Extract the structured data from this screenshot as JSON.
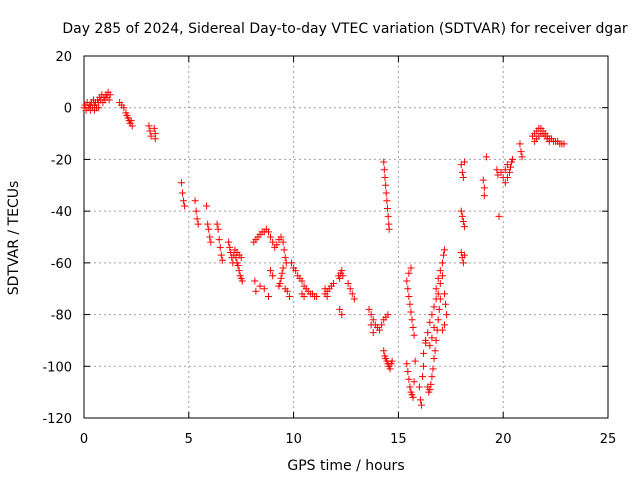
{
  "chart_data": {
    "type": "scatter",
    "title": "Day 285 of 2024, Sidereal Day-to-day VTEC variation (SDTVAR) for receiver dgar",
    "xlabel": "GPS time / hours",
    "ylabel": "SDTVAR / TECUs",
    "xlim": [
      0,
      25
    ],
    "ylim": [
      -120,
      20
    ],
    "xticks": [
      "0",
      "5",
      "10",
      "15",
      "20",
      "25"
    ],
    "yticks": [
      "20",
      "0",
      "-20",
      "-40",
      "-60",
      "-80",
      "-100",
      "-120"
    ],
    "grid": true,
    "marker": "+",
    "marker_color": "#ff0000",
    "series": [
      {
        "name": "SDTVAR",
        "points": [
          [
            0.0,
            0
          ],
          [
            0.05,
            1
          ],
          [
            0.1,
            -1
          ],
          [
            0.15,
            2
          ],
          [
            0.2,
            0
          ],
          [
            0.25,
            1
          ],
          [
            0.3,
            -1
          ],
          [
            0.35,
            2
          ],
          [
            0.4,
            0
          ],
          [
            0.45,
            3
          ],
          [
            0.5,
            1
          ],
          [
            0.55,
            2
          ],
          [
            0.6,
            0
          ],
          [
            0.65,
            3
          ],
          [
            0.7,
            2
          ],
          [
            0.75,
            4
          ],
          [
            0.8,
            3
          ],
          [
            0.85,
            5
          ],
          [
            0.9,
            2
          ],
          [
            0.95,
            4
          ],
          [
            1.0,
            3
          ],
          [
            1.05,
            5
          ],
          [
            1.1,
            4
          ],
          [
            1.15,
            6
          ],
          [
            1.2,
            3
          ],
          [
            1.25,
            5
          ],
          [
            0.3,
            1
          ],
          [
            0.5,
            -1
          ],
          [
            0.7,
            0
          ],
          [
            1.7,
            2
          ],
          [
            1.8,
            1
          ],
          [
            1.9,
            0
          ],
          [
            2.0,
            -2
          ],
          [
            2.05,
            -3
          ],
          [
            2.1,
            -4
          ],
          [
            2.15,
            -5
          ],
          [
            2.2,
            -6
          ],
          [
            2.25,
            -5
          ],
          [
            2.3,
            -7
          ],
          [
            3.1,
            -7
          ],
          [
            3.15,
            -9
          ],
          [
            3.2,
            -11
          ],
          [
            3.35,
            -8
          ],
          [
            3.4,
            -10
          ],
          [
            3.4,
            -12
          ],
          [
            4.65,
            -29
          ],
          [
            4.7,
            -33
          ],
          [
            4.75,
            -36
          ],
          [
            4.8,
            -38
          ],
          [
            5.3,
            -36
          ],
          [
            5.35,
            -40
          ],
          [
            5.4,
            -43
          ],
          [
            5.45,
            -45
          ],
          [
            5.85,
            -38
          ],
          [
            5.9,
            -45
          ],
          [
            5.95,
            -47
          ],
          [
            6.0,
            -50
          ],
          [
            6.05,
            -52
          ],
          [
            6.35,
            -45
          ],
          [
            6.4,
            -47
          ],
          [
            6.45,
            -51
          ],
          [
            6.5,
            -54
          ],
          [
            6.55,
            -57
          ],
          [
            6.6,
            -59
          ],
          [
            6.9,
            -52
          ],
          [
            6.95,
            -54
          ],
          [
            7.0,
            -56
          ],
          [
            7.05,
            -58
          ],
          [
            7.1,
            -60
          ],
          [
            7.15,
            -57
          ],
          [
            7.2,
            -55
          ],
          [
            7.25,
            -58
          ],
          [
            7.3,
            -60
          ],
          [
            7.35,
            -61
          ],
          [
            7.4,
            -63
          ],
          [
            7.45,
            -65
          ],
          [
            7.5,
            -66
          ],
          [
            7.55,
            -67
          ],
          [
            7.3,
            -56
          ],
          [
            7.4,
            -57
          ],
          [
            7.5,
            -58
          ],
          [
            8.1,
            -52
          ],
          [
            8.2,
            -51
          ],
          [
            8.3,
            -50
          ],
          [
            8.4,
            -49
          ],
          [
            8.5,
            -48
          ],
          [
            8.6,
            -48
          ],
          [
            8.7,
            -47
          ],
          [
            8.8,
            -48
          ],
          [
            8.9,
            -50
          ],
          [
            9.0,
            -52
          ],
          [
            9.1,
            -54
          ],
          [
            9.2,
            -53
          ],
          [
            9.3,
            -51
          ],
          [
            9.4,
            -50
          ],
          [
            9.5,
            -52
          ],
          [
            9.55,
            -55
          ],
          [
            9.6,
            -58
          ],
          [
            9.65,
            -60
          ],
          [
            9.5,
            -62
          ],
          [
            9.45,
            -64
          ],
          [
            9.4,
            -66
          ],
          [
            9.35,
            -68
          ],
          [
            9.3,
            -69
          ],
          [
            8.15,
            -67
          ],
          [
            8.2,
            -71
          ],
          [
            8.4,
            -69
          ],
          [
            8.6,
            -70
          ],
          [
            8.8,
            -73
          ],
          [
            8.9,
            -63
          ],
          [
            9.0,
            -65
          ],
          [
            9.6,
            -70
          ],
          [
            9.7,
            -71
          ],
          [
            9.8,
            -73
          ],
          [
            9.9,
            -60
          ],
          [
            10.0,
            -62
          ],
          [
            10.1,
            -63
          ],
          [
            10.2,
            -65
          ],
          [
            10.3,
            -66
          ],
          [
            10.4,
            -67
          ],
          [
            10.5,
            -69
          ],
          [
            10.6,
            -70
          ],
          [
            10.7,
            -71
          ],
          [
            10.8,
            -72
          ],
          [
            10.9,
            -72
          ],
          [
            11.0,
            -73
          ],
          [
            11.1,
            -73
          ],
          [
            10.4,
            -72
          ],
          [
            10.5,
            -73
          ],
          [
            11.5,
            -72
          ],
          [
            11.6,
            -71
          ],
          [
            11.7,
            -70
          ],
          [
            11.8,
            -69
          ],
          [
            11.9,
            -68
          ],
          [
            11.6,
            -73
          ],
          [
            11.5,
            -70
          ],
          [
            12.15,
            -65
          ],
          [
            12.2,
            -66
          ],
          [
            12.25,
            -64
          ],
          [
            12.3,
            -63
          ],
          [
            12.35,
            -65
          ],
          [
            12.6,
            -68
          ],
          [
            12.7,
            -70
          ],
          [
            12.8,
            -72
          ],
          [
            12.9,
            -74
          ],
          [
            12.2,
            -78
          ],
          [
            12.3,
            -80
          ],
          [
            13.6,
            -78
          ],
          [
            13.7,
            -80
          ],
          [
            13.8,
            -82
          ],
          [
            13.9,
            -84
          ],
          [
            14.0,
            -85
          ],
          [
            14.1,
            -86
          ],
          [
            14.2,
            -84
          ],
          [
            14.3,
            -82
          ],
          [
            14.4,
            -81
          ],
          [
            14.5,
            -80
          ],
          [
            13.7,
            -84
          ],
          [
            13.8,
            -87
          ],
          [
            14.3,
            -94
          ],
          [
            14.35,
            -96
          ],
          [
            14.4,
            -97
          ],
          [
            14.45,
            -98
          ],
          [
            14.5,
            -99
          ],
          [
            14.55,
            -100
          ],
          [
            14.6,
            -101
          ],
          [
            14.65,
            -99
          ],
          [
            14.7,
            -98
          ],
          [
            14.3,
            -21
          ],
          [
            14.33,
            -24
          ],
          [
            14.36,
            -27
          ],
          [
            14.39,
            -30
          ],
          [
            14.42,
            -33
          ],
          [
            14.45,
            -36
          ],
          [
            14.48,
            -39
          ],
          [
            14.51,
            -42
          ],
          [
            14.54,
            -45
          ],
          [
            14.56,
            -47
          ],
          [
            15.4,
            -67
          ],
          [
            15.45,
            -70
          ],
          [
            15.5,
            -73
          ],
          [
            15.55,
            -76
          ],
          [
            15.6,
            -79
          ],
          [
            15.65,
            -82
          ],
          [
            15.7,
            -85
          ],
          [
            15.75,
            -88
          ],
          [
            15.5,
            -64
          ],
          [
            15.6,
            -62
          ],
          [
            15.4,
            -99
          ],
          [
            15.45,
            -102
          ],
          [
            15.5,
            -105
          ],
          [
            15.55,
            -108
          ],
          [
            15.6,
            -110
          ],
          [
            15.65,
            -111
          ],
          [
            15.7,
            -112
          ],
          [
            15.75,
            -106
          ],
          [
            15.8,
            -98
          ],
          [
            16.0,
            -108
          ],
          [
            16.05,
            -113
          ],
          [
            16.1,
            -115
          ],
          [
            16.15,
            -104
          ],
          [
            16.2,
            -100
          ],
          [
            16.3,
            -90
          ],
          [
            16.4,
            -108
          ],
          [
            16.45,
            -110
          ],
          [
            16.5,
            -109
          ],
          [
            16.55,
            -107
          ],
          [
            16.6,
            -104
          ],
          [
            16.65,
            -101
          ],
          [
            16.7,
            -97
          ],
          [
            16.75,
            -94
          ],
          [
            16.8,
            -90
          ],
          [
            16.85,
            -86
          ],
          [
            16.9,
            -82
          ],
          [
            16.95,
            -78
          ],
          [
            17.0,
            -74
          ],
          [
            16.2,
            -95
          ],
          [
            16.3,
            -91
          ],
          [
            16.4,
            -87
          ],
          [
            16.5,
            -83
          ],
          [
            16.6,
            -80
          ],
          [
            16.7,
            -77
          ],
          [
            16.8,
            -74
          ],
          [
            16.5,
            -92
          ],
          [
            16.6,
            -89
          ],
          [
            16.7,
            -85
          ],
          [
            16.8,
            -70
          ],
          [
            16.9,
            -66
          ],
          [
            17.0,
            -63
          ],
          [
            17.1,
            -60
          ],
          [
            17.15,
            -57
          ],
          [
            17.2,
            -55
          ],
          [
            16.9,
            -72
          ],
          [
            17.0,
            -68
          ],
          [
            17.1,
            -65
          ],
          [
            17.2,
            -72
          ],
          [
            17.25,
            -76
          ],
          [
            17.3,
            -80
          ],
          [
            17.2,
            -84
          ],
          [
            17.1,
            -86
          ],
          [
            18.0,
            -56
          ],
          [
            18.05,
            -58
          ],
          [
            18.1,
            -60
          ],
          [
            18.15,
            -57
          ],
          [
            18.0,
            -40
          ],
          [
            18.05,
            -42
          ],
          [
            18.1,
            -44
          ],
          [
            18.15,
            -46
          ],
          [
            18.0,
            -22
          ],
          [
            18.05,
            -25
          ],
          [
            18.1,
            -27
          ],
          [
            18.15,
            -21
          ],
          [
            19.05,
            -28
          ],
          [
            19.1,
            -31
          ],
          [
            19.1,
            -34
          ],
          [
            19.2,
            -19
          ],
          [
            19.7,
            -24
          ],
          [
            19.75,
            -26
          ],
          [
            19.8,
            -42
          ],
          [
            19.9,
            -25
          ],
          [
            20.0,
            -27
          ],
          [
            20.1,
            -29
          ],
          [
            20.2,
            -27
          ],
          [
            20.3,
            -25
          ],
          [
            20.35,
            -23
          ],
          [
            20.4,
            -21
          ],
          [
            20.45,
            -20
          ],
          [
            20.1,
            -24
          ],
          [
            20.2,
            -22
          ],
          [
            20.8,
            -14
          ],
          [
            20.85,
            -17
          ],
          [
            20.9,
            -19
          ],
          [
            21.4,
            -11
          ],
          [
            21.5,
            -10
          ],
          [
            21.6,
            -9
          ],
          [
            21.7,
            -8
          ],
          [
            21.8,
            -8
          ],
          [
            21.9,
            -9
          ],
          [
            22.0,
            -10
          ],
          [
            22.1,
            -11
          ],
          [
            22.2,
            -12
          ],
          [
            22.3,
            -12
          ],
          [
            22.4,
            -13
          ],
          [
            22.5,
            -13
          ],
          [
            22.6,
            -13
          ],
          [
            22.7,
            -14
          ],
          [
            22.8,
            -14
          ],
          [
            22.9,
            -14
          ],
          [
            21.5,
            -13
          ],
          [
            21.6,
            -12
          ],
          [
            21.7,
            -11
          ],
          [
            21.8,
            -10
          ],
          [
            21.9,
            -10
          ],
          [
            22.0,
            -11
          ],
          [
            22.1,
            -12
          ],
          [
            22.2,
            -13
          ]
        ]
      }
    ]
  }
}
